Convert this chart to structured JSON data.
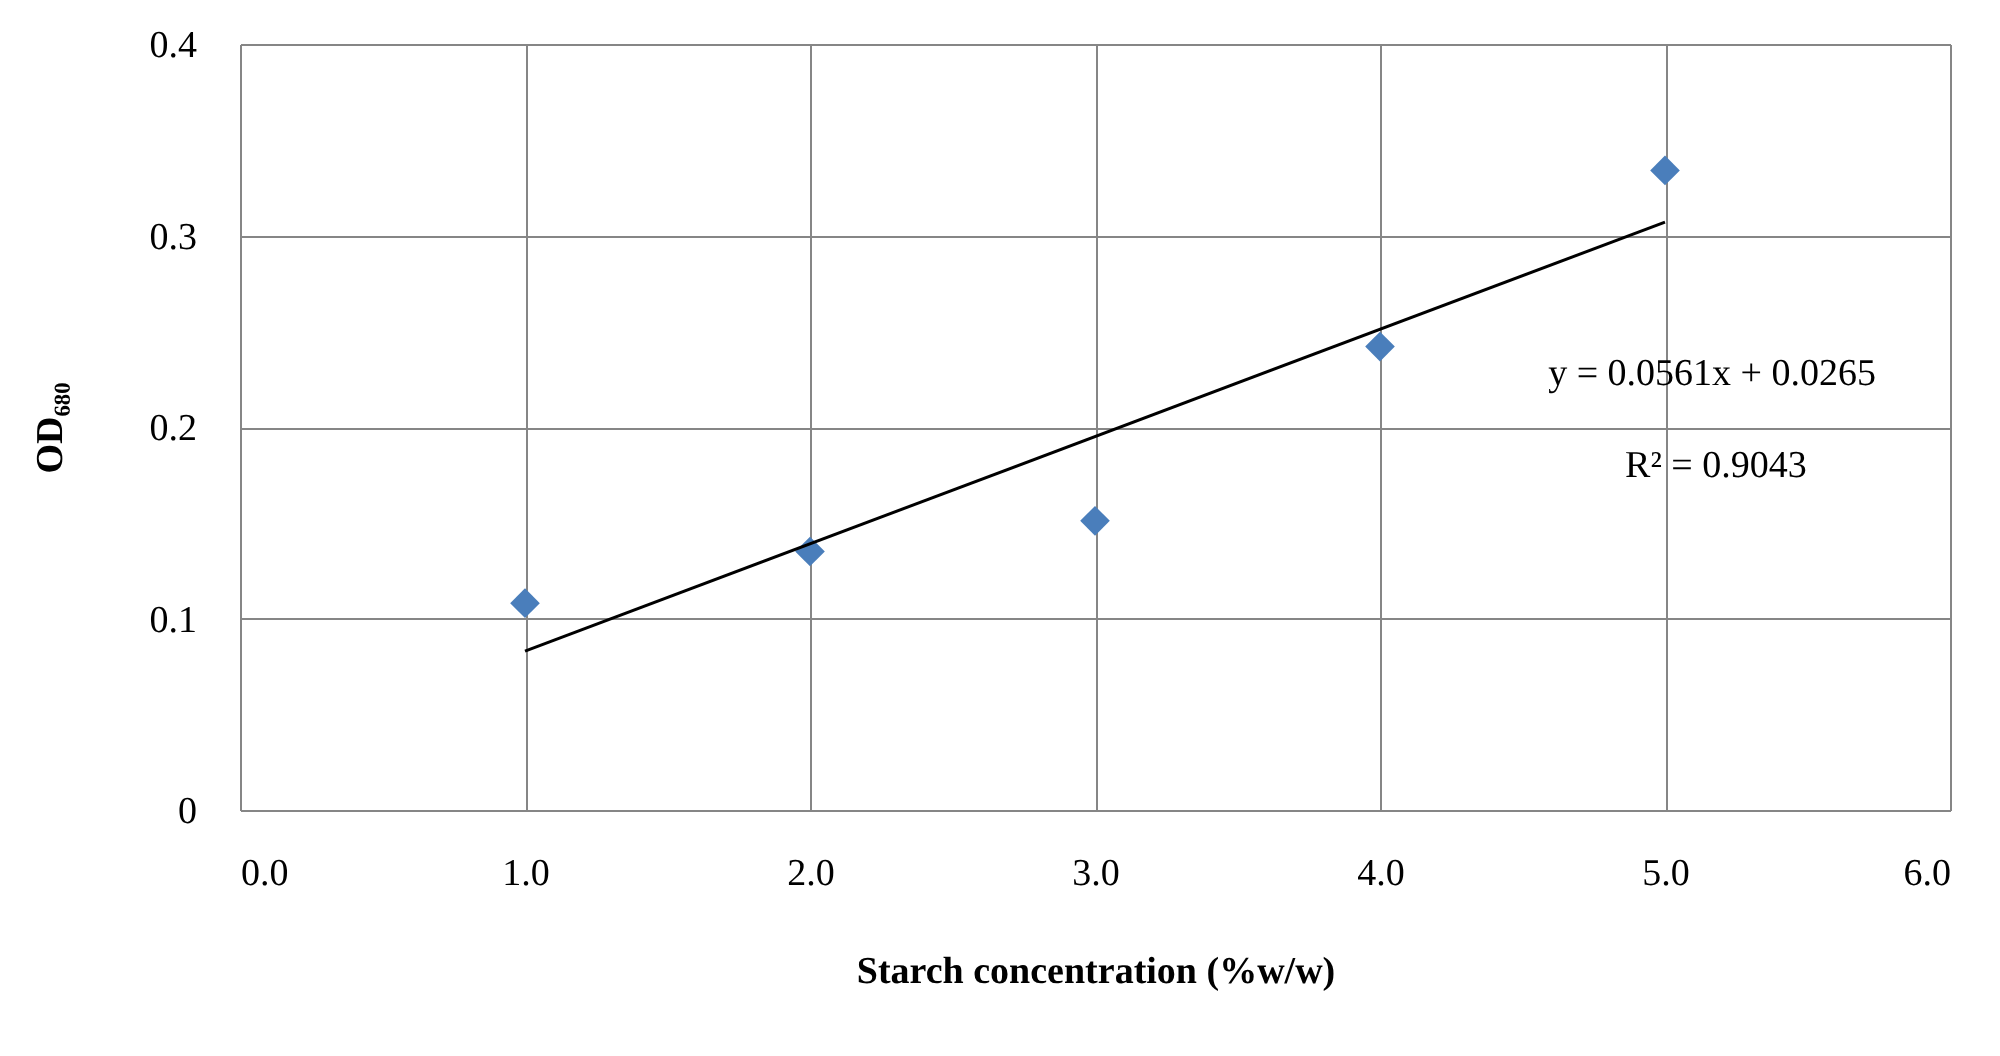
{
  "chart_data": {
    "type": "scatter",
    "xlabel": "Starch concentration (%w/w)",
    "ylabel": "OD₆₈₀",
    "x": [
      1,
      2,
      3,
      4,
      5
    ],
    "series": [
      {
        "color": "#4a7ebb",
        "values": [
          0.108,
          0.135,
          0.151,
          0.242,
          0.334
        ],
        "marker": "diamond"
      },
      {
        "type": "line",
        "color": "#000000",
        "x": [
          1,
          5
        ],
        "values": [
          0.083,
          0.307
        ]
      }
    ],
    "xlim": [
      0,
      6
    ],
    "xticks": [
      {
        "value": 0,
        "label": "0.0"
      },
      {
        "value": 1,
        "label": "1.0"
      },
      {
        "value": 2,
        "label": "2.0"
      },
      {
        "value": 3,
        "label": "3.0"
      },
      {
        "value": 4,
        "label": "4.0"
      },
      {
        "value": 5,
        "label": "5.0"
      },
      {
        "value": 6,
        "label": "6.0"
      }
    ],
    "ylim": [
      0,
      0.4
    ],
    "yticks": [
      0,
      0.1,
      0.2,
      0.3,
      0.4
    ],
    "grid": true,
    "annotations": [
      "y = 0.0561x + 0.0265",
      "R² = 0.9043"
    ]
  }
}
